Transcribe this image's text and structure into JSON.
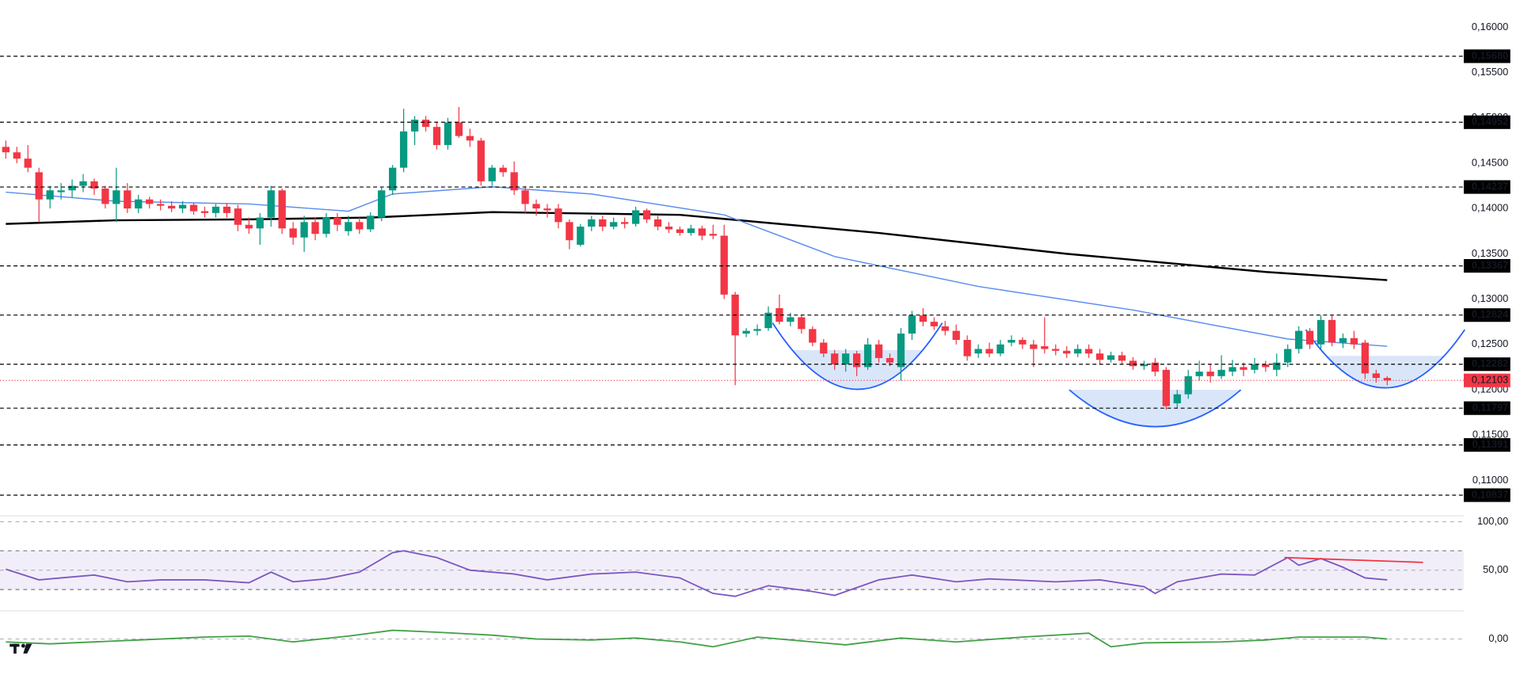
{
  "chart_data": {
    "type": "candlestick",
    "up_color": "#089981",
    "down_color": "#f23645",
    "ylim": [
      0.1063,
      0.163
    ],
    "yticks": [
      {
        "value": 0.16,
        "label": "0,16000"
      },
      {
        "value": 0.155,
        "label": "0,15500"
      },
      {
        "value": 0.15,
        "label": "0,15000"
      },
      {
        "value": 0.145,
        "label": "0,14500"
      },
      {
        "value": 0.14,
        "label": "0,14000"
      },
      {
        "value": 0.135,
        "label": "0,13500"
      },
      {
        "value": 0.13,
        "label": "0,13000"
      },
      {
        "value": 0.125,
        "label": "0,12500"
      },
      {
        "value": 0.12,
        "label": "0,12000"
      },
      {
        "value": 0.115,
        "label": "0,11500"
      },
      {
        "value": 0.11,
        "label": "0,11000"
      }
    ],
    "levels": [
      {
        "value": 0.1568,
        "label": "0,15680"
      },
      {
        "value": 0.14952,
        "label": "0,14952"
      },
      {
        "value": 0.14237,
        "label": "0,14237"
      },
      {
        "value": 0.13367,
        "label": "0,13367"
      },
      {
        "value": 0.12824,
        "label": "0,12824"
      },
      {
        "value": 0.12282,
        "label": "0,12282"
      },
      {
        "value": 0.11797,
        "label": "0,11797"
      },
      {
        "value": 0.11391,
        "label": "0,11391"
      },
      {
        "value": 0.10837,
        "label": "0,10837"
      }
    ],
    "last_price": {
      "value": 0.12103,
      "label": "0,12103"
    },
    "candles": [
      [
        0.1468,
        0.1475,
        0.1455,
        0.1462
      ],
      [
        0.1462,
        0.1468,
        0.145,
        0.1455
      ],
      [
        0.1455,
        0.147,
        0.144,
        0.1445
      ],
      [
        0.144,
        0.1445,
        0.1385,
        0.141
      ],
      [
        0.141,
        0.1425,
        0.14,
        0.142
      ],
      [
        0.1418,
        0.1428,
        0.141,
        0.142
      ],
      [
        0.142,
        0.1432,
        0.1412,
        0.1425
      ],
      [
        0.1425,
        0.1438,
        0.1418,
        0.143
      ],
      [
        0.143,
        0.1433,
        0.1415,
        0.1422
      ],
      [
        0.1422,
        0.1425,
        0.14,
        0.1405
      ],
      [
        0.1405,
        0.1445,
        0.1385,
        0.142
      ],
      [
        0.142,
        0.1428,
        0.1395,
        0.14
      ],
      [
        0.14,
        0.1415,
        0.1395,
        0.141
      ],
      [
        0.141,
        0.1413,
        0.14,
        0.1405
      ],
      [
        0.1405,
        0.141,
        0.1398,
        0.1403
      ],
      [
        0.1403,
        0.1408,
        0.1396,
        0.14
      ],
      [
        0.14,
        0.1408,
        0.1395,
        0.1404
      ],
      [
        0.1404,
        0.1406,
        0.1393,
        0.1397
      ],
      [
        0.1397,
        0.1402,
        0.139,
        0.1395
      ],
      [
        0.1395,
        0.1405,
        0.139,
        0.1402
      ],
      [
        0.1402,
        0.1406,
        0.139,
        0.1395
      ],
      [
        0.14,
        0.1404,
        0.1375,
        0.1382
      ],
      [
        0.1382,
        0.139,
        0.1372,
        0.1378
      ],
      [
        0.1378,
        0.1395,
        0.136,
        0.139
      ],
      [
        0.139,
        0.1425,
        0.138,
        0.142
      ],
      [
        0.142,
        0.1422,
        0.1372,
        0.1378
      ],
      [
        0.1378,
        0.1385,
        0.136,
        0.1368
      ],
      [
        0.1368,
        0.1392,
        0.1352,
        0.1385
      ],
      [
        0.1385,
        0.139,
        0.1365,
        0.1372
      ],
      [
        0.1372,
        0.1395,
        0.1368,
        0.139
      ],
      [
        0.139,
        0.1395,
        0.1375,
        0.1382
      ],
      [
        0.1375,
        0.1392,
        0.137,
        0.1385
      ],
      [
        0.1385,
        0.139,
        0.1372,
        0.1377
      ],
      [
        0.1377,
        0.1396,
        0.1374,
        0.1392
      ],
      [
        0.139,
        0.1423,
        0.1386,
        0.142
      ],
      [
        0.142,
        0.1448,
        0.1415,
        0.1445
      ],
      [
        0.1445,
        0.151,
        0.144,
        0.1485
      ],
      [
        0.1485,
        0.1502,
        0.147,
        0.1498
      ],
      [
        0.1498,
        0.1502,
        0.1485,
        0.149
      ],
      [
        0.149,
        0.1495,
        0.1465,
        0.147
      ],
      [
        0.147,
        0.15,
        0.1465,
        0.1495
      ],
      [
        0.1495,
        0.1512,
        0.1478,
        0.148
      ],
      [
        0.148,
        0.1488,
        0.1468,
        0.1475
      ],
      [
        0.1475,
        0.1478,
        0.1425,
        0.143
      ],
      [
        0.143,
        0.1448,
        0.1425,
        0.1445
      ],
      [
        0.1445,
        0.1448,
        0.1435,
        0.144
      ],
      [
        0.144,
        0.1452,
        0.1415,
        0.142
      ],
      [
        0.142,
        0.1425,
        0.1395,
        0.1405
      ],
      [
        0.1405,
        0.141,
        0.1392,
        0.14
      ],
      [
        0.14,
        0.1405,
        0.139,
        0.1398
      ],
      [
        0.14,
        0.1405,
        0.1378,
        0.1385
      ],
      [
        0.1385,
        0.1388,
        0.1355,
        0.1365
      ],
      [
        0.136,
        0.1383,
        0.1358,
        0.138
      ],
      [
        0.138,
        0.1392,
        0.1375,
        0.1388
      ],
      [
        0.1388,
        0.1392,
        0.1375,
        0.138
      ],
      [
        0.138,
        0.139,
        0.1377,
        0.1385
      ],
      [
        0.1385,
        0.139,
        0.1378,
        0.1383
      ],
      [
        0.1383,
        0.1402,
        0.138,
        0.1398
      ],
      [
        0.1398,
        0.14,
        0.1384,
        0.1388
      ],
      [
        0.1388,
        0.1392,
        0.1376,
        0.138
      ],
      [
        0.138,
        0.1385,
        0.1373,
        0.1377
      ],
      [
        0.1377,
        0.138,
        0.137,
        0.1373
      ],
      [
        0.1373,
        0.1382,
        0.137,
        0.1378
      ],
      [
        0.1378,
        0.1381,
        0.1365,
        0.137
      ],
      [
        0.1372,
        0.1382,
        0.1366,
        0.137
      ],
      [
        0.137,
        0.1382,
        0.13,
        0.1305
      ],
      [
        0.1305,
        0.1308,
        0.1205,
        0.126
      ],
      [
        0.1262,
        0.1268,
        0.1258,
        0.1265
      ],
      [
        0.1265,
        0.1272,
        0.126,
        0.1267
      ],
      [
        0.1268,
        0.1292,
        0.1265,
        0.1285
      ],
      [
        0.129,
        0.1305,
        0.1272,
        0.1275
      ],
      [
        0.1275,
        0.1285,
        0.127,
        0.128
      ],
      [
        0.128,
        0.1283,
        0.1262,
        0.1267
      ],
      [
        0.1267,
        0.127,
        0.1248,
        0.1252
      ],
      [
        0.1252,
        0.1256,
        0.1236,
        0.124
      ],
      [
        0.124,
        0.1244,
        0.1222,
        0.1228
      ],
      [
        0.1228,
        0.1245,
        0.122,
        0.124
      ],
      [
        0.124,
        0.1243,
        0.1215,
        0.1225
      ],
      [
        0.1225,
        0.1257,
        0.1222,
        0.125
      ],
      [
        0.125,
        0.1255,
        0.123,
        0.1235
      ],
      [
        0.1235,
        0.124,
        0.1226,
        0.123
      ],
      [
        0.1225,
        0.1268,
        0.121,
        0.1262
      ],
      [
        0.1262,
        0.1287,
        0.1255,
        0.1282
      ],
      [
        0.1282,
        0.129,
        0.127,
        0.1275
      ],
      [
        0.1275,
        0.128,
        0.1266,
        0.127
      ],
      [
        0.127,
        0.1276,
        0.126,
        0.1265
      ],
      [
        0.1265,
        0.1272,
        0.125,
        0.1255
      ],
      [
        0.1255,
        0.126,
        0.1232,
        0.1237
      ],
      [
        0.124,
        0.125,
        0.1235,
        0.1245
      ],
      [
        0.1245,
        0.1252,
        0.1236,
        0.124
      ],
      [
        0.124,
        0.1255,
        0.1237,
        0.125
      ],
      [
        0.1252,
        0.126,
        0.1248,
        0.1255
      ],
      [
        0.1255,
        0.1258,
        0.1245,
        0.125
      ],
      [
        0.125,
        0.1255,
        0.1225,
        0.1245
      ],
      [
        0.1248,
        0.128,
        0.124,
        0.1245
      ],
      [
        0.1245,
        0.125,
        0.1238,
        0.1243
      ],
      [
        0.1243,
        0.1248,
        0.1235,
        0.124
      ],
      [
        0.124,
        0.125,
        0.1236,
        0.1245
      ],
      [
        0.1245,
        0.125,
        0.1235,
        0.124
      ],
      [
        0.124,
        0.1245,
        0.1228,
        0.1233
      ],
      [
        0.1233,
        0.1242,
        0.123,
        0.1238
      ],
      [
        0.1238,
        0.1242,
        0.1228,
        0.1232
      ],
      [
        0.1232,
        0.1236,
        0.1222,
        0.1226
      ],
      [
        0.1226,
        0.1232,
        0.1222,
        0.1228
      ],
      [
        0.123,
        0.1235,
        0.1215,
        0.122
      ],
      [
        0.1222,
        0.1225,
        0.1178,
        0.1182
      ],
      [
        0.1185,
        0.12,
        0.118,
        0.1195
      ],
      [
        0.1195,
        0.1222,
        0.119,
        0.1215
      ],
      [
        0.1215,
        0.1232,
        0.121,
        0.122
      ],
      [
        0.122,
        0.1228,
        0.1208,
        0.1215
      ],
      [
        0.1215,
        0.1238,
        0.1212,
        0.1222
      ],
      [
        0.122,
        0.1233,
        0.1215,
        0.1225
      ],
      [
        0.1225,
        0.123,
        0.1215,
        0.1222
      ],
      [
        0.1222,
        0.1235,
        0.1218,
        0.1228
      ],
      [
        0.1228,
        0.1232,
        0.122,
        0.1225
      ],
      [
        0.1222,
        0.124,
        0.1215,
        0.123
      ],
      [
        0.123,
        0.125,
        0.1225,
        0.1245
      ],
      [
        0.1245,
        0.127,
        0.124,
        0.1265
      ],
      [
        0.1265,
        0.1268,
        0.1245,
        0.125
      ],
      [
        0.125,
        0.1282,
        0.1245,
        0.1277
      ],
      [
        0.1277,
        0.1282,
        0.1248,
        0.1252
      ],
      [
        0.1252,
        0.1262,
        0.1246,
        0.1257
      ],
      [
        0.1257,
        0.1265,
        0.1245,
        0.125
      ],
      [
        0.1252,
        0.1255,
        0.1212,
        0.1218
      ],
      [
        0.1218,
        0.1222,
        0.1208,
        0.1213
      ],
      [
        0.1213,
        0.1215,
        0.1205,
        0.12103
      ]
    ],
    "series": [
      {
        "color": "#000000",
        "x": [
          0,
          10,
          22,
          33,
          44,
          61,
          79,
          96,
          114,
          125
        ],
        "values": [
          0.1383,
          0.1387,
          0.1388,
          0.139,
          0.1396,
          0.1393,
          0.1373,
          0.135,
          0.133,
          0.1321
        ]
      },
      {
        "color": "#5b8def",
        "x": [
          0,
          10,
          22,
          31,
          35,
          44,
          53,
          65,
          75,
          88,
          102,
          116,
          125
        ],
        "values": [
          0.1418,
          0.1408,
          0.1405,
          0.1397,
          0.1416,
          0.1424,
          0.1416,
          0.1393,
          0.1347,
          0.1314,
          0.1288,
          0.1256,
          0.1248
        ]
      }
    ],
    "rsi": {
      "ylim": [
        8,
        106
      ],
      "yticks": [
        {
          "value": 100,
          "label": "100,00"
        },
        {
          "value": 50,
          "label": "50,00"
        }
      ],
      "band": [
        30,
        70
      ],
      "color": "#7e57c2",
      "x": [
        0,
        3,
        5,
        8,
        11,
        14,
        18,
        22,
        24,
        26,
        29,
        32,
        35,
        36,
        39,
        42,
        46,
        49,
        53,
        57,
        61,
        64,
        66,
        69,
        73,
        75,
        79,
        82,
        86,
        89,
        95,
        99,
        103,
        104,
        106,
        110,
        113,
        116,
        117,
        119,
        121,
        123,
        125
      ],
      "values": [
        51,
        40,
        42,
        45,
        38,
        40,
        40,
        37,
        48,
        38,
        41,
        48,
        68,
        70,
        63,
        50,
        46,
        40,
        46,
        48,
        42,
        26,
        23,
        34,
        28,
        24,
        40,
        45,
        38,
        41,
        38,
        40,
        33,
        26,
        38,
        46,
        45,
        63,
        55,
        62,
        53,
        42,
        40
      ]
    },
    "oscillator": {
      "ylim": [
        -0.0026,
        0.0026
      ],
      "yticks": [
        {
          "value": 0,
          "label": "0,00"
        }
      ],
      "color": "#43a047",
      "x": [
        0,
        4,
        12,
        18,
        22,
        26,
        31,
        35,
        39,
        44,
        48,
        53,
        57,
        61,
        64,
        68,
        73,
        76,
        81,
        86,
        92,
        98,
        100,
        103,
        110,
        114,
        117,
        123,
        125
      ],
      "values": [
        -0.0003,
        -0.0005,
        -0.0001,
        0.0002,
        0.0003,
        -0.0003,
        0.0003,
        0.0009,
        0.0007,
        0.0004,
        0,
        -0.0001,
        0.0001,
        -0.0003,
        -0.0008,
        0.0002,
        -0.0003,
        -0.0006,
        0.0001,
        -0.0003,
        0.0002,
        0.0006,
        -0.0008,
        -0.0004,
        -0.0003,
        -0.0001,
        0.0002,
        0.0002,
        0
      ]
    }
  }
}
